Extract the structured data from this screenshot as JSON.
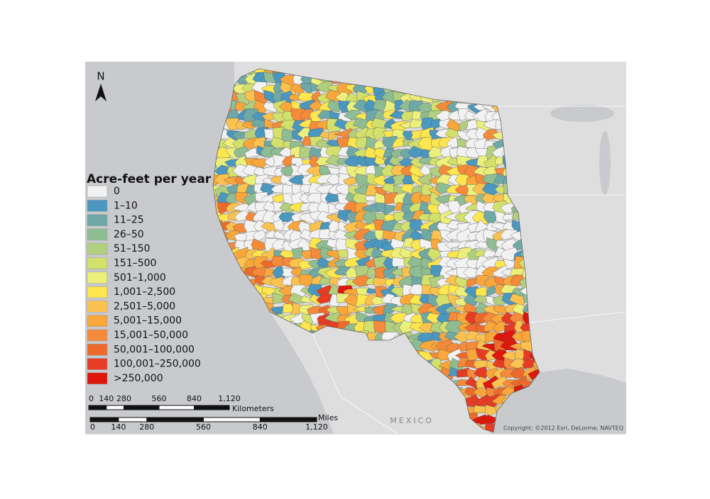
{
  "north_label": "N",
  "legend": {
    "title": "Acre-feet per year",
    "items": [
      {
        "label": "0",
        "color": "#f2f2f2"
      },
      {
        "label": "1–10",
        "color": "#4a97c0"
      },
      {
        "label": "11–25",
        "color": "#6ea9a8"
      },
      {
        "label": "26–50",
        "color": "#8fbd93"
      },
      {
        "label": "51–150",
        "color": "#b2cf80"
      },
      {
        "label": "151–500",
        "color": "#d3e16c"
      },
      {
        "label": "501–1,000",
        "color": "#ecf07a"
      },
      {
        "label": "1,001–2,500",
        "color": "#fde64e"
      },
      {
        "label": "2,501–5,000",
        "color": "#fcc24f"
      },
      {
        "label": "5,001–15,000",
        "color": "#f9a63b"
      },
      {
        "label": "15,001–50,000",
        "color": "#f48a3a"
      },
      {
        "label": "50,001–100,000",
        "color": "#ee6a2a"
      },
      {
        "label": "100,001–250,000",
        "color": "#e53c23"
      },
      {
        "label": ">250,000",
        "color": "#de160c"
      }
    ]
  },
  "scale_km": {
    "unit": "Kilometers",
    "ticks": [
      0,
      140,
      280,
      560,
      840,
      {
        "value": 1120,
        "label": "1,120"
      }
    ]
  },
  "scale_mi": {
    "unit": "Miles",
    "ticks": [
      0,
      140,
      280,
      560,
      840,
      {
        "value": 1120,
        "label": "1,120"
      }
    ]
  },
  "place_label": "MEXICO",
  "copyright": "Copyright: ©2012 Esri, DeLorme, NAVTEQ"
}
